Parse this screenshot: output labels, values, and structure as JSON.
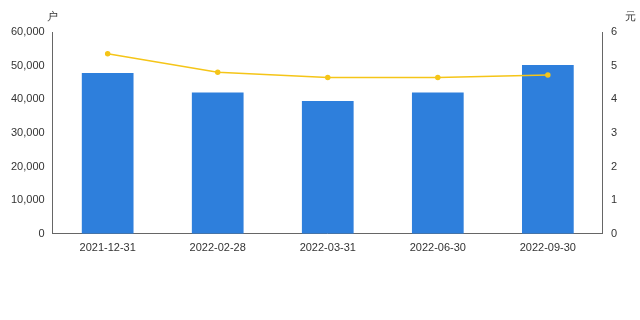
{
  "chart_data": {
    "type": "bar",
    "categories": [
      "2021-12-31",
      "2022-02-28",
      "2022-03-31",
      "2022-06-30",
      "2022-09-30"
    ],
    "ylabel": "户",
    "y2label": "元",
    "series": [
      {
        "type": "bar",
        "color": "#2e7fdc",
        "values": [
          47800,
          42000,
          39500,
          42000,
          50200
        ]
      },
      {
        "type": "line",
        "axis": "y2",
        "color": "#f5c518",
        "marker": "circle",
        "line_style": "solid",
        "values": [
          5.35,
          4.8,
          4.65,
          4.65,
          4.72
        ]
      }
    ],
    "ylim": [
      0,
      60000
    ],
    "yticks": [
      0,
      {
        "value": 10000,
        "label": "10,000"
      },
      {
        "value": 20000,
        "label": "20,000"
      },
      {
        "value": 30000,
        "label": "30,000"
      },
      {
        "value": 40000,
        "label": "40,000"
      },
      {
        "value": 50000,
        "label": "50,000"
      },
      {
        "value": 60000,
        "label": "60,000"
      }
    ],
    "y2lim": [
      0,
      6
    ],
    "y2ticks": [
      0,
      1,
      2,
      3,
      4,
      5,
      6
    ],
    "grid": false
  }
}
